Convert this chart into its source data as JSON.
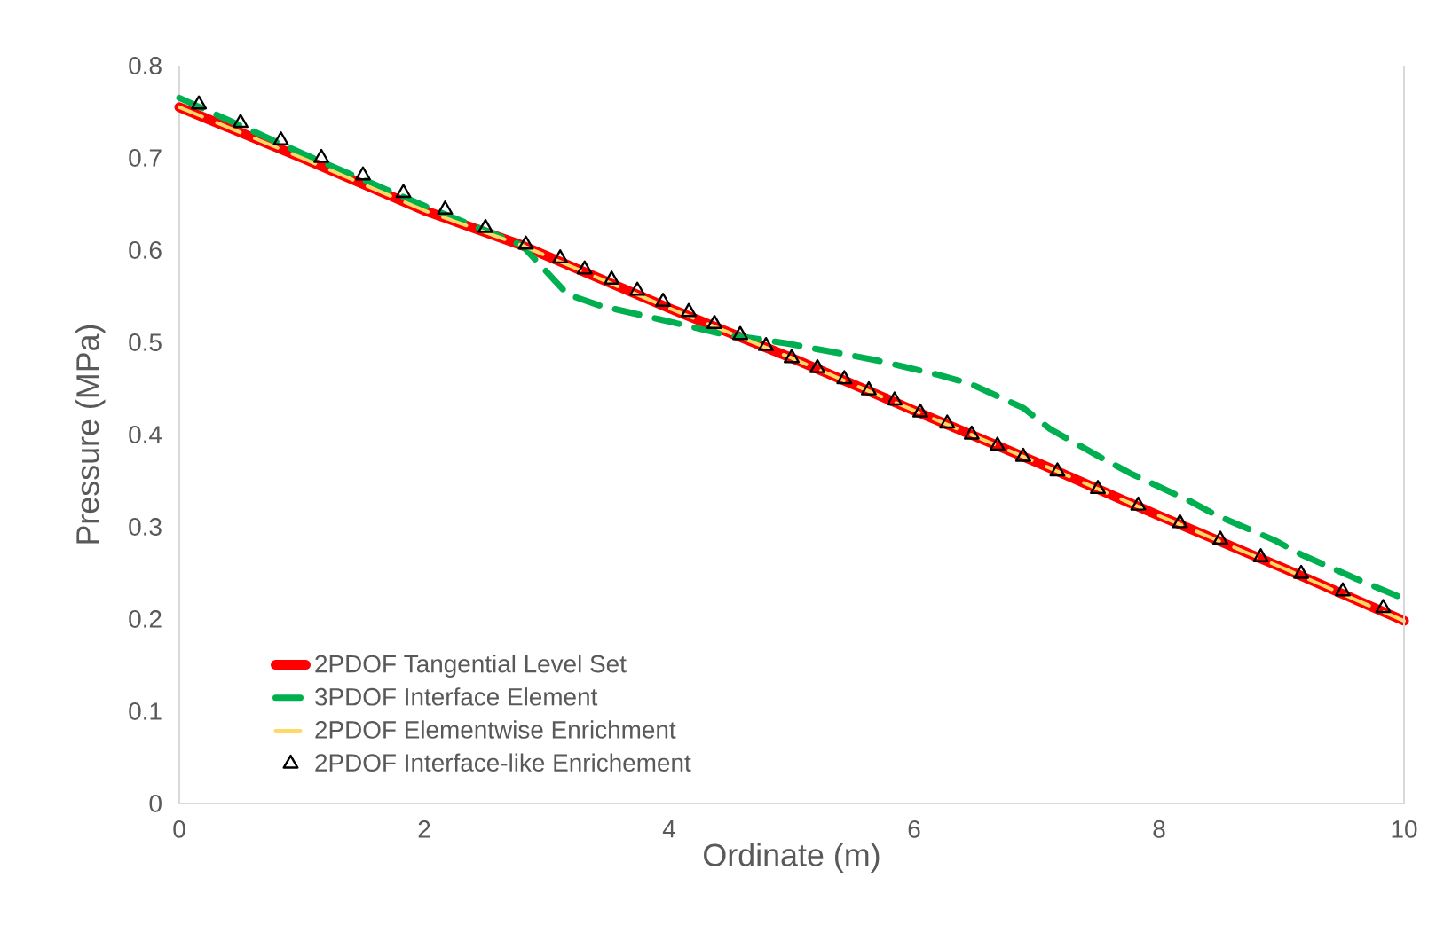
{
  "chart_data": {
    "type": "line",
    "xlabel": "Ordinate (m)",
    "ylabel": "Pressure (MPa)",
    "xlim": [
      0,
      10
    ],
    "ylim": [
      0,
      0.8
    ],
    "xticks": [
      0,
      2,
      4,
      6,
      8,
      10
    ],
    "yticks": [
      0,
      0.1,
      0.2,
      0.3,
      0.4,
      0.5,
      0.6,
      0.7,
      0.8
    ],
    "grid": false,
    "legend": "bottom left",
    "series": [
      {
        "name": "2PDOF Tangential Level Set",
        "color": "#ff0000",
        "line_style": "solid",
        "marker": "none",
        "x": [
          0,
          1,
          2,
          2.8,
          4,
          5,
          6,
          7,
          8,
          9,
          10
        ],
        "values": [
          0.755,
          0.7,
          0.643,
          0.605,
          0.537,
          0.483,
          0.426,
          0.37,
          0.312,
          0.256,
          0.198
        ]
      },
      {
        "name": "3PDOF Interface Element",
        "color": "#00b050",
        "line_style": "dashed",
        "marker": "none",
        "x": [
          0,
          1,
          2,
          2.8,
          3.17,
          3.43,
          3.92,
          4.4,
          4.95,
          5.44,
          5.71,
          6.19,
          6.46,
          6.89,
          7.11,
          7.54,
          7.78,
          8.25,
          8.46,
          8.95,
          9.16,
          9.62,
          10
        ],
        "values": [
          0.765,
          0.705,
          0.648,
          0.605,
          0.552,
          0.54,
          0.525,
          0.51,
          0.499,
          0.487,
          0.48,
          0.465,
          0.455,
          0.429,
          0.406,
          0.374,
          0.357,
          0.328,
          0.313,
          0.285,
          0.27,
          0.243,
          0.222
        ]
      },
      {
        "name": "2PDOF Elementwise Enrichment",
        "color": "#ffd966",
        "line_style": "dashed",
        "marker": "none",
        "x": [
          0,
          1,
          2,
          2.8,
          4,
          5,
          6,
          7,
          8,
          9,
          10
        ],
        "values": [
          0.755,
          0.7,
          0.643,
          0.605,
          0.537,
          0.483,
          0.426,
          0.37,
          0.312,
          0.256,
          0.198
        ]
      },
      {
        "name": "2PDOF Interface-like Enrichement",
        "type": "scatter",
        "color": "#000000",
        "marker": "triangle",
        "x": [
          0.16,
          0.5,
          0.83,
          1.16,
          1.5,
          1.83,
          2.17,
          2.5,
          2.83,
          3.11,
          3.31,
          3.53,
          3.74,
          3.95,
          4.16,
          4.37,
          4.58,
          4.79,
          5.0,
          5.21,
          5.43,
          5.63,
          5.84,
          6.05,
          6.27,
          6.47,
          6.68,
          6.89,
          7.17,
          7.5,
          7.83,
          8.17,
          8.5,
          8.83,
          9.16,
          9.5,
          9.83
        ],
        "values": [
          0.758,
          0.738,
          0.719,
          0.7,
          0.681,
          0.662,
          0.644,
          0.624,
          0.606,
          0.591,
          0.579,
          0.568,
          0.556,
          0.544,
          0.533,
          0.52,
          0.508,
          0.496,
          0.483,
          0.472,
          0.46,
          0.448,
          0.437,
          0.424,
          0.412,
          0.4,
          0.388,
          0.376,
          0.36,
          0.341,
          0.323,
          0.304,
          0.286,
          0.267,
          0.249,
          0.23,
          0.212
        ]
      }
    ]
  }
}
